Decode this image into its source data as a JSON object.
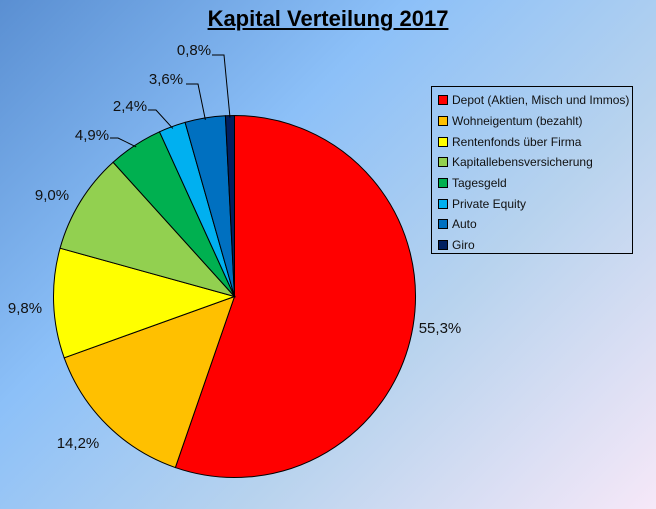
{
  "chart_data": {
    "type": "pie",
    "title": "Kapital Verteilung 2017",
    "legend_position": "right",
    "slices": [
      {
        "label": "Depot (Aktien, Misch und Immos)",
        "value": 55.3,
        "display": "55,3%",
        "color": "#ff0000"
      },
      {
        "label": "Wohneigentum (bezahlt)",
        "value": 14.2,
        "display": "14,2%",
        "color": "#ffc000"
      },
      {
        "label": "Rentenfonds über Firma",
        "value": 9.8,
        "display": "9,8%",
        "color": "#ffff00"
      },
      {
        "label": "Kapitallebensversicherung",
        "value": 9.0,
        "display": "9,0%",
        "color": "#92d050"
      },
      {
        "label": "Tagesgeld",
        "value": 4.9,
        "display": "4,9%",
        "color": "#00b050"
      },
      {
        "label": "Private Equity",
        "value": 2.4,
        "display": "2,4%",
        "color": "#00b0f0"
      },
      {
        "label": "Auto",
        "value": 3.6,
        "display": "3,6%",
        "color": "#0070c0"
      },
      {
        "label": "Giro",
        "value": 0.8,
        "display": "0,8%",
        "color": "#002060"
      }
    ]
  }
}
